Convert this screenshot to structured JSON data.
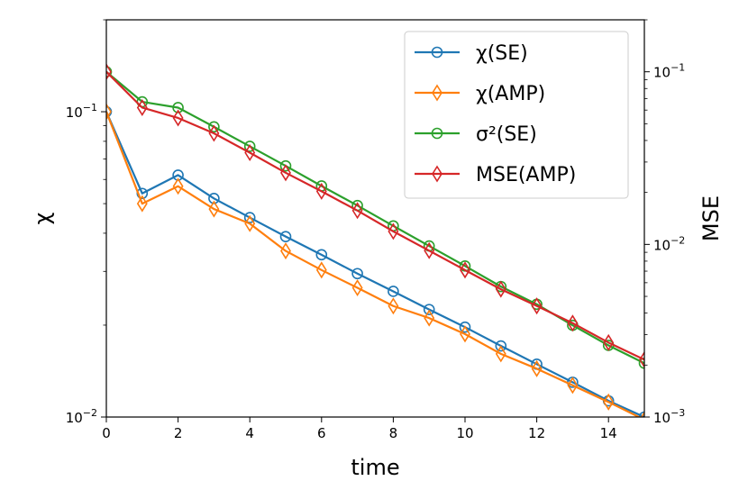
{
  "chart_data": {
    "type": "line",
    "xlabel": "time",
    "ylabel_left": "χ",
    "ylabel_right": "MSE",
    "xlim": [
      0,
      15
    ],
    "ylim_left": [
      0.01,
      0.2
    ],
    "ylim_right": [
      0.001,
      0.2
    ],
    "yscale_left": "log",
    "yscale_right": "log",
    "x_ticks": [
      0,
      2,
      4,
      6,
      8,
      10,
      12,
      14
    ],
    "x_tick_labels": [
      "0",
      "2",
      "4",
      "6",
      "8",
      "10",
      "12",
      "14"
    ],
    "y_left_major_ticks": [
      0.01,
      0.1
    ],
    "y_left_tick_labels": [
      {
        "base": "10",
        "exp": "−2"
      },
      {
        "base": "10",
        "exp": "−1"
      }
    ],
    "y_right_major_ticks": [
      0.001,
      0.01,
      0.1
    ],
    "y_right_tick_labels": [
      {
        "base": "10",
        "exp": "−3"
      },
      {
        "base": "10",
        "exp": "−2"
      },
      {
        "base": "10",
        "exp": "−1"
      }
    ],
    "grid": false,
    "legend_position": "top-right",
    "x": [
      0,
      1,
      2,
      3,
      4,
      5,
      6,
      7,
      8,
      9,
      10,
      11,
      12,
      13,
      14,
      15
    ],
    "series": [
      {
        "name": "χ(SE)",
        "axis": "left",
        "color": "#1f77b4",
        "marker": "circle",
        "values": [
          0.1,
          0.054,
          0.062,
          0.052,
          0.045,
          0.039,
          0.034,
          0.0295,
          0.0258,
          0.0225,
          0.0197,
          0.0171,
          0.0149,
          0.013,
          0.0113,
          0.01
        ]
      },
      {
        "name": "χ(AMP)",
        "axis": "left",
        "color": "#ff7f0e",
        "marker": "diamond",
        "values": [
          0.1,
          0.05,
          0.057,
          0.048,
          0.043,
          0.035,
          0.0303,
          0.0265,
          0.0231,
          0.0211,
          0.0187,
          0.0161,
          0.0144,
          0.0127,
          0.0112,
          0.0098
        ]
      },
      {
        "name": "σ²(SE)",
        "axis": "right",
        "color": "#2ca02c",
        "marker": "circle",
        "values": [
          0.1,
          0.067,
          0.062,
          0.048,
          0.037,
          0.0285,
          0.0218,
          0.0168,
          0.0128,
          0.0098,
          0.0075,
          0.0057,
          0.0045,
          0.0034,
          0.0026,
          0.00205
        ]
      },
      {
        "name": "MSE(AMP)",
        "axis": "right",
        "color": "#d62728",
        "marker": "diamond",
        "values": [
          0.1,
          0.062,
          0.054,
          0.044,
          0.034,
          0.026,
          0.0203,
          0.0157,
          0.0119,
          0.0092,
          0.0071,
          0.0055,
          0.0044,
          0.0035,
          0.0027,
          0.00215
        ]
      }
    ]
  }
}
